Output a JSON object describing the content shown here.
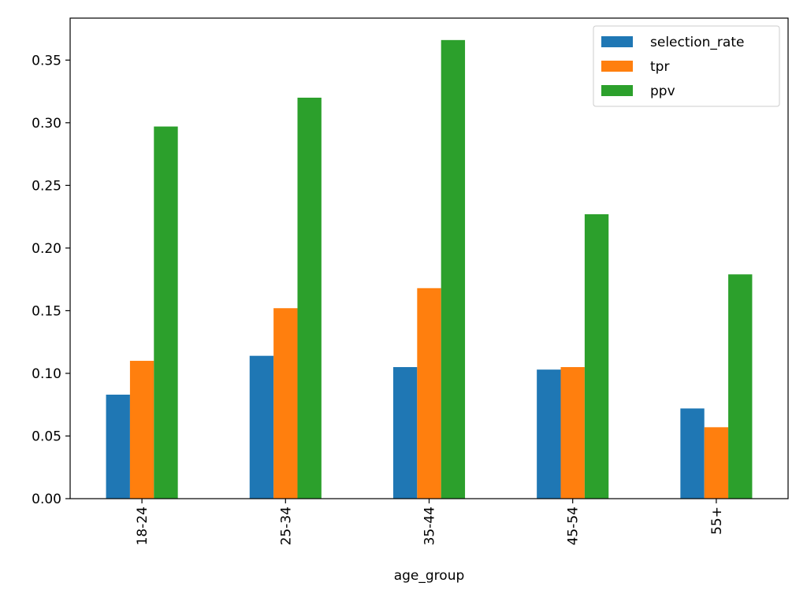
{
  "chart_data": {
    "type": "bar",
    "title": "",
    "xlabel": "age_group",
    "ylabel": "",
    "categories": [
      "18-24",
      "25-34",
      "35-44",
      "45-54",
      "55+"
    ],
    "series": [
      {
        "name": "selection_rate",
        "color": "#1f77b4",
        "values": [
          0.083,
          0.114,
          0.105,
          0.103,
          0.072
        ]
      },
      {
        "name": "tpr",
        "color": "#ff7f0e",
        "values": [
          0.11,
          0.152,
          0.168,
          0.105,
          0.057
        ]
      },
      {
        "name": "ppv",
        "color": "#2ca02c",
        "values": [
          0.297,
          0.32,
          0.366,
          0.227,
          0.179
        ]
      }
    ],
    "ylim": [
      0,
      0.3835
    ],
    "yticks": [
      0.0,
      0.05,
      0.1,
      0.15,
      0.2,
      0.25,
      0.3,
      0.35
    ],
    "ytick_labels": [
      "0.00",
      "0.05",
      "0.10",
      "0.15",
      "0.20",
      "0.25",
      "0.30",
      "0.35"
    ],
    "grid": false,
    "legend_position": "top-right"
  }
}
